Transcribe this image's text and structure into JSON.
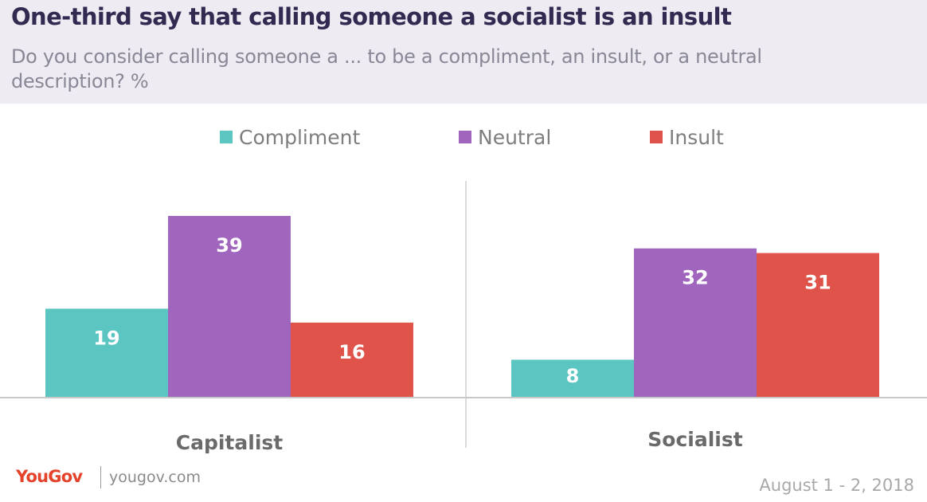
{
  "header": {
    "title": "One-third say that calling someone a socialist is an insult",
    "subtitle": "Do you consider calling someone a ... to be a compliment, an insult, or a neutral description? %"
  },
  "chart_data": {
    "type": "bar",
    "title": "One-third say that calling someone a socialist is an insult",
    "subtitle": "Do you consider calling someone a ... to be a compliment, an insult, or a neutral description? %",
    "categories": [
      "Capitalist",
      "Socialist"
    ],
    "series": [
      {
        "name": "Compliment",
        "color": "#5bc5c2",
        "values": [
          19,
          8
        ]
      },
      {
        "name": "Neutral",
        "color": "#a066bd",
        "values": [
          39,
          32
        ]
      },
      {
        "name": "Insult",
        "color": "#e0534a",
        "values": [
          16,
          31
        ]
      }
    ],
    "ylim": [
      0,
      39
    ],
    "legend": "top-center",
    "grid": false
  },
  "footer": {
    "brand": "YouGov",
    "url": "yougov.com",
    "date": "August 1 - 2, 2018"
  }
}
